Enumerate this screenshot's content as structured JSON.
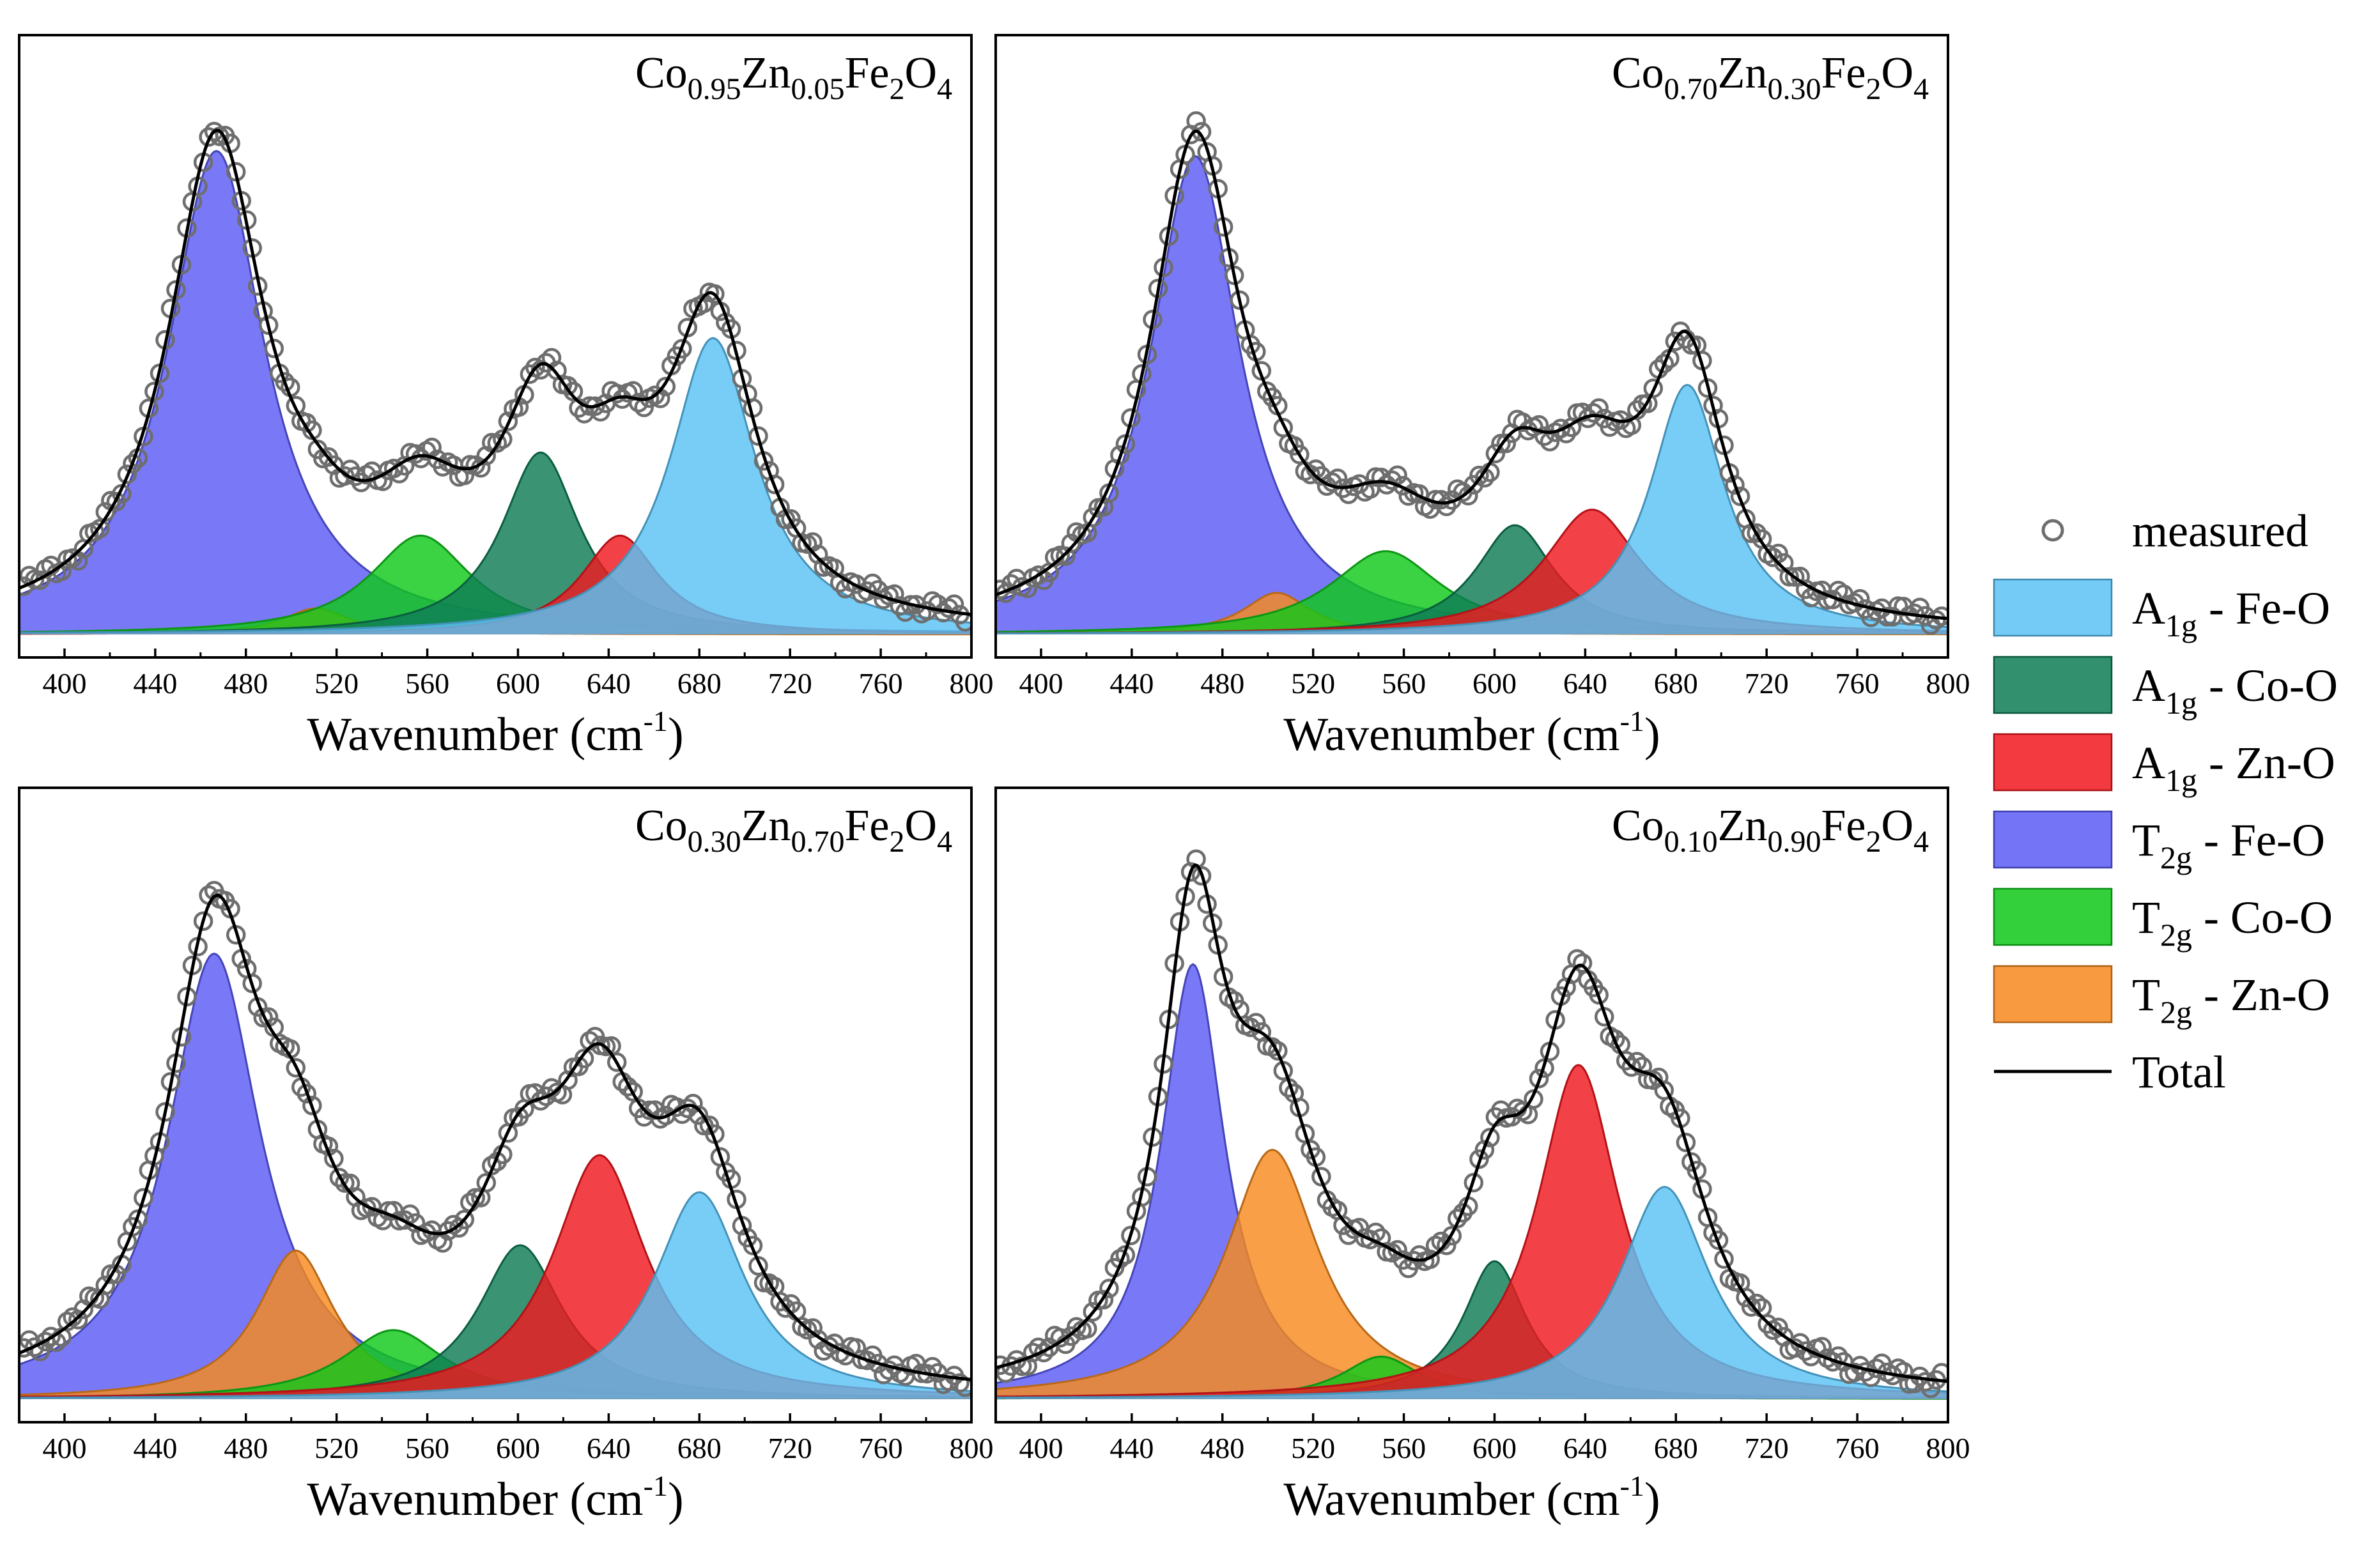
{
  "chart_data": {
    "type": "area",
    "x_range": [
      380,
      800
    ],
    "x_ticks": [
      400,
      440,
      480,
      520,
      560,
      600,
      640,
      680,
      720,
      760,
      800
    ],
    "xlabel": {
      "text": "Wavenumber (cm",
      "sup": "-1",
      "close": ")"
    },
    "legend": [
      {
        "key": "measured",
        "kind": "circle",
        "text": "measured"
      },
      {
        "key": "A1g_FeO",
        "kind": "fill",
        "main": "A",
        "sub": "1g",
        "rest": " - Fe-O",
        "color": "#5ac2f5"
      },
      {
        "key": "A1g_CoO",
        "kind": "fill",
        "main": "A",
        "sub": "1g",
        "rest": " - Co-O",
        "color": "#0f7d55"
      },
      {
        "key": "A1g_ZnO",
        "kind": "fill",
        "main": "A",
        "sub": "1g",
        "rest": " - Zn-O",
        "color": "#f0181e"
      },
      {
        "key": "T2g_FeO",
        "kind": "fill",
        "main": "T",
        "sub": "2g",
        "rest": " - Fe-O",
        "color": "#5b5cf5"
      },
      {
        "key": "T2g_CoO",
        "kind": "fill",
        "main": "T",
        "sub": "2g",
        "rest": " - Co-O",
        "color": "#10c81a"
      },
      {
        "key": "T2g_ZnO",
        "kind": "fill",
        "main": "T",
        "sub": "2g",
        "rest": " - Zn-O",
        "color": "#f78a1e"
      },
      {
        "key": "total",
        "kind": "line",
        "text": "Total"
      }
    ],
    "panels": [
      {
        "title": [
          [
            "Co",
            "text"
          ],
          [
            "0.95",
            "sub"
          ],
          [
            "Zn",
            "text"
          ],
          [
            "0.05",
            "sub"
          ],
          [
            "Fe",
            "text"
          ],
          [
            "2",
            "sub"
          ],
          [
            "O",
            "text"
          ],
          [
            "4",
            "sub"
          ]
        ],
        "ymax": 1.0,
        "baseline": 0.01,
        "peaks": [
          {
            "key": "T2g_FeO",
            "center": 467,
            "height": 0.93,
            "fwhm": 52
          },
          {
            "key": "T2g_ZnO",
            "center": 511,
            "height": 0.05,
            "fwhm": 36
          },
          {
            "key": "T2g_CoO",
            "center": 557,
            "height": 0.19,
            "fwhm": 55
          },
          {
            "key": "A1g_CoO",
            "center": 610,
            "height": 0.35,
            "fwhm": 42
          },
          {
            "key": "A1g_ZnO",
            "center": 645,
            "height": 0.19,
            "fwhm": 42
          },
          {
            "key": "A1g_FeO",
            "center": 686,
            "height": 0.57,
            "fwhm": 46
          }
        ]
      },
      {
        "title": [
          [
            "Co",
            "text"
          ],
          [
            "0.70",
            "sub"
          ],
          [
            "Zn",
            "text"
          ],
          [
            "0.30",
            "sub"
          ],
          [
            "Fe",
            "text"
          ],
          [
            "2",
            "sub"
          ],
          [
            "O",
            "text"
          ],
          [
            "4",
            "sub"
          ]
        ],
        "ymax": 1.0,
        "baseline": 0.01,
        "peaks": [
          {
            "key": "T2g_FeO",
            "center": 468,
            "height": 0.92,
            "fwhm": 48
          },
          {
            "key": "T2g_ZnO",
            "center": 504,
            "height": 0.08,
            "fwhm": 36
          },
          {
            "key": "T2g_CoO",
            "center": 552,
            "height": 0.16,
            "fwhm": 60
          },
          {
            "key": "A1g_CoO",
            "center": 609,
            "height": 0.21,
            "fwhm": 42
          },
          {
            "key": "A1g_ZnO",
            "center": 643,
            "height": 0.24,
            "fwhm": 52
          },
          {
            "key": "A1g_FeO",
            "center": 685,
            "height": 0.48,
            "fwhm": 40
          }
        ]
      },
      {
        "title": [
          [
            "Co",
            "text"
          ],
          [
            "0.30",
            "sub"
          ],
          [
            "Zn",
            "text"
          ],
          [
            "0.70",
            "sub"
          ],
          [
            "Fe",
            "text"
          ],
          [
            "2",
            "sub"
          ],
          [
            "O",
            "text"
          ],
          [
            "4",
            "sub"
          ]
        ],
        "ymax": 1.0,
        "baseline": 0.01,
        "peaks": [
          {
            "key": "T2g_FeO",
            "center": 466,
            "height": 0.84,
            "fwhm": 50
          },
          {
            "key": "T2g_ZnO",
            "center": 502,
            "height": 0.28,
            "fwhm": 42
          },
          {
            "key": "T2g_CoO",
            "center": 545,
            "height": 0.13,
            "fwhm": 55
          },
          {
            "key": "A1g_CoO",
            "center": 601,
            "height": 0.29,
            "fwhm": 45
          },
          {
            "key": "A1g_ZnO",
            "center": 636,
            "height": 0.46,
            "fwhm": 50
          },
          {
            "key": "A1g_FeO",
            "center": 680,
            "height": 0.39,
            "fwhm": 48
          }
        ]
      },
      {
        "title": [
          [
            "Co",
            "text"
          ],
          [
            "0.10",
            "sub"
          ],
          [
            "Zn",
            "text"
          ],
          [
            "0.90",
            "sub"
          ],
          [
            "Fe",
            "text"
          ],
          [
            "2",
            "sub"
          ],
          [
            "O",
            "text"
          ],
          [
            "4",
            "sub"
          ]
        ],
        "ymax": 1.0,
        "baseline": 0.01,
        "peaks": [
          {
            "key": "T2g_FeO",
            "center": 467,
            "height": 0.82,
            "fwhm": 34
          },
          {
            "key": "T2g_ZnO",
            "center": 502,
            "height": 0.47,
            "fwhm": 50
          },
          {
            "key": "T2g_CoO",
            "center": 550,
            "height": 0.08,
            "fwhm": 42
          },
          {
            "key": "A1g_CoO",
            "center": 600,
            "height": 0.26,
            "fwhm": 34
          },
          {
            "key": "A1g_ZnO",
            "center": 637,
            "height": 0.63,
            "fwhm": 44
          },
          {
            "key": "A1g_FeO",
            "center": 675,
            "height": 0.4,
            "fwhm": 48
          }
        ]
      }
    ]
  }
}
